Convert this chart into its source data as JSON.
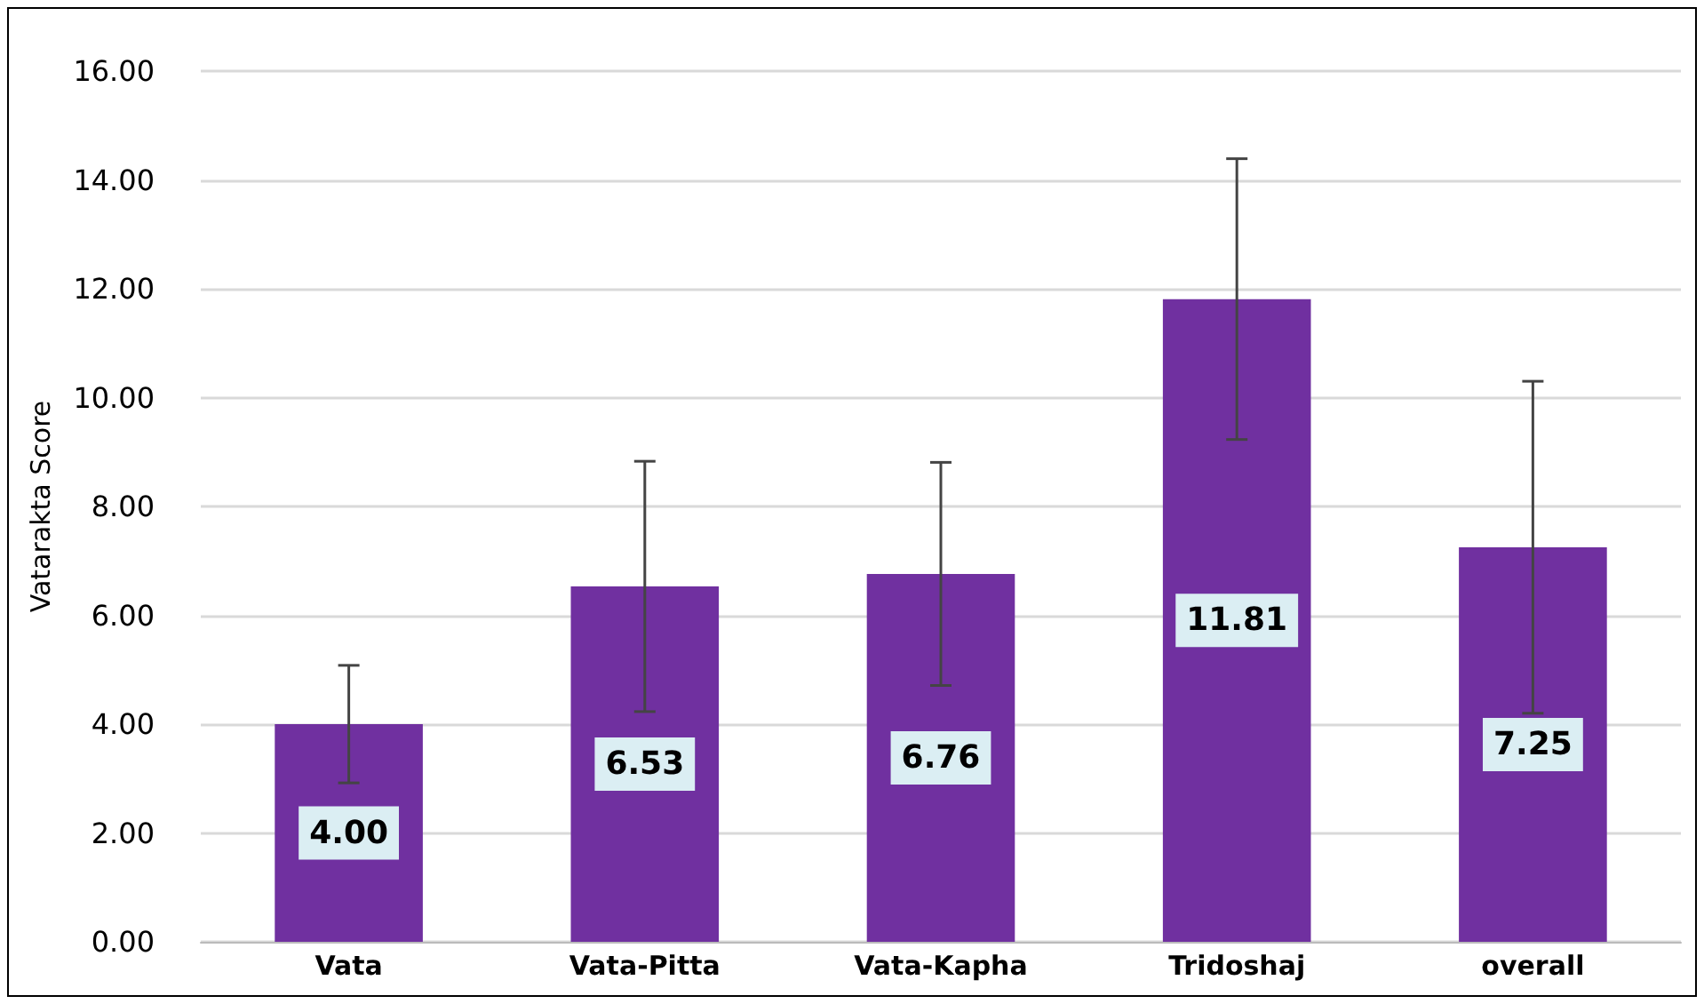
{
  "chart_data": {
    "type": "bar",
    "ylabel": "Vatarakta Score",
    "categories": [
      "Vata",
      "Vata-Pitta",
      "Vata-Kapha",
      "Tridoshaj",
      "overall"
    ],
    "values": [
      4.0,
      6.53,
      6.76,
      11.81,
      7.25
    ],
    "errors": [
      1.08,
      2.3,
      2.05,
      2.58,
      3.05
    ],
    "value_labels": [
      "4.00",
      "6.53",
      "6.76",
      "11.81",
      "7.25"
    ],
    "color": "#7030a0",
    "grid": "y",
    "ylim": [
      0,
      16
    ],
    "yticks": [
      {
        "value": 0,
        "label": "0.00"
      },
      {
        "value": 2,
        "label": "2.00"
      },
      {
        "value": 4,
        "label": "4.00"
      },
      {
        "value": 6,
        "label": "6.00"
      },
      {
        "value": 8,
        "label": "8.00"
      },
      {
        "value": 10,
        "label": "10.00"
      },
      {
        "value": 12,
        "label": "12.00"
      },
      {
        "value": 14,
        "label": "14.00"
      },
      {
        "value": 16,
        "label": "16.00"
      }
    ]
  }
}
